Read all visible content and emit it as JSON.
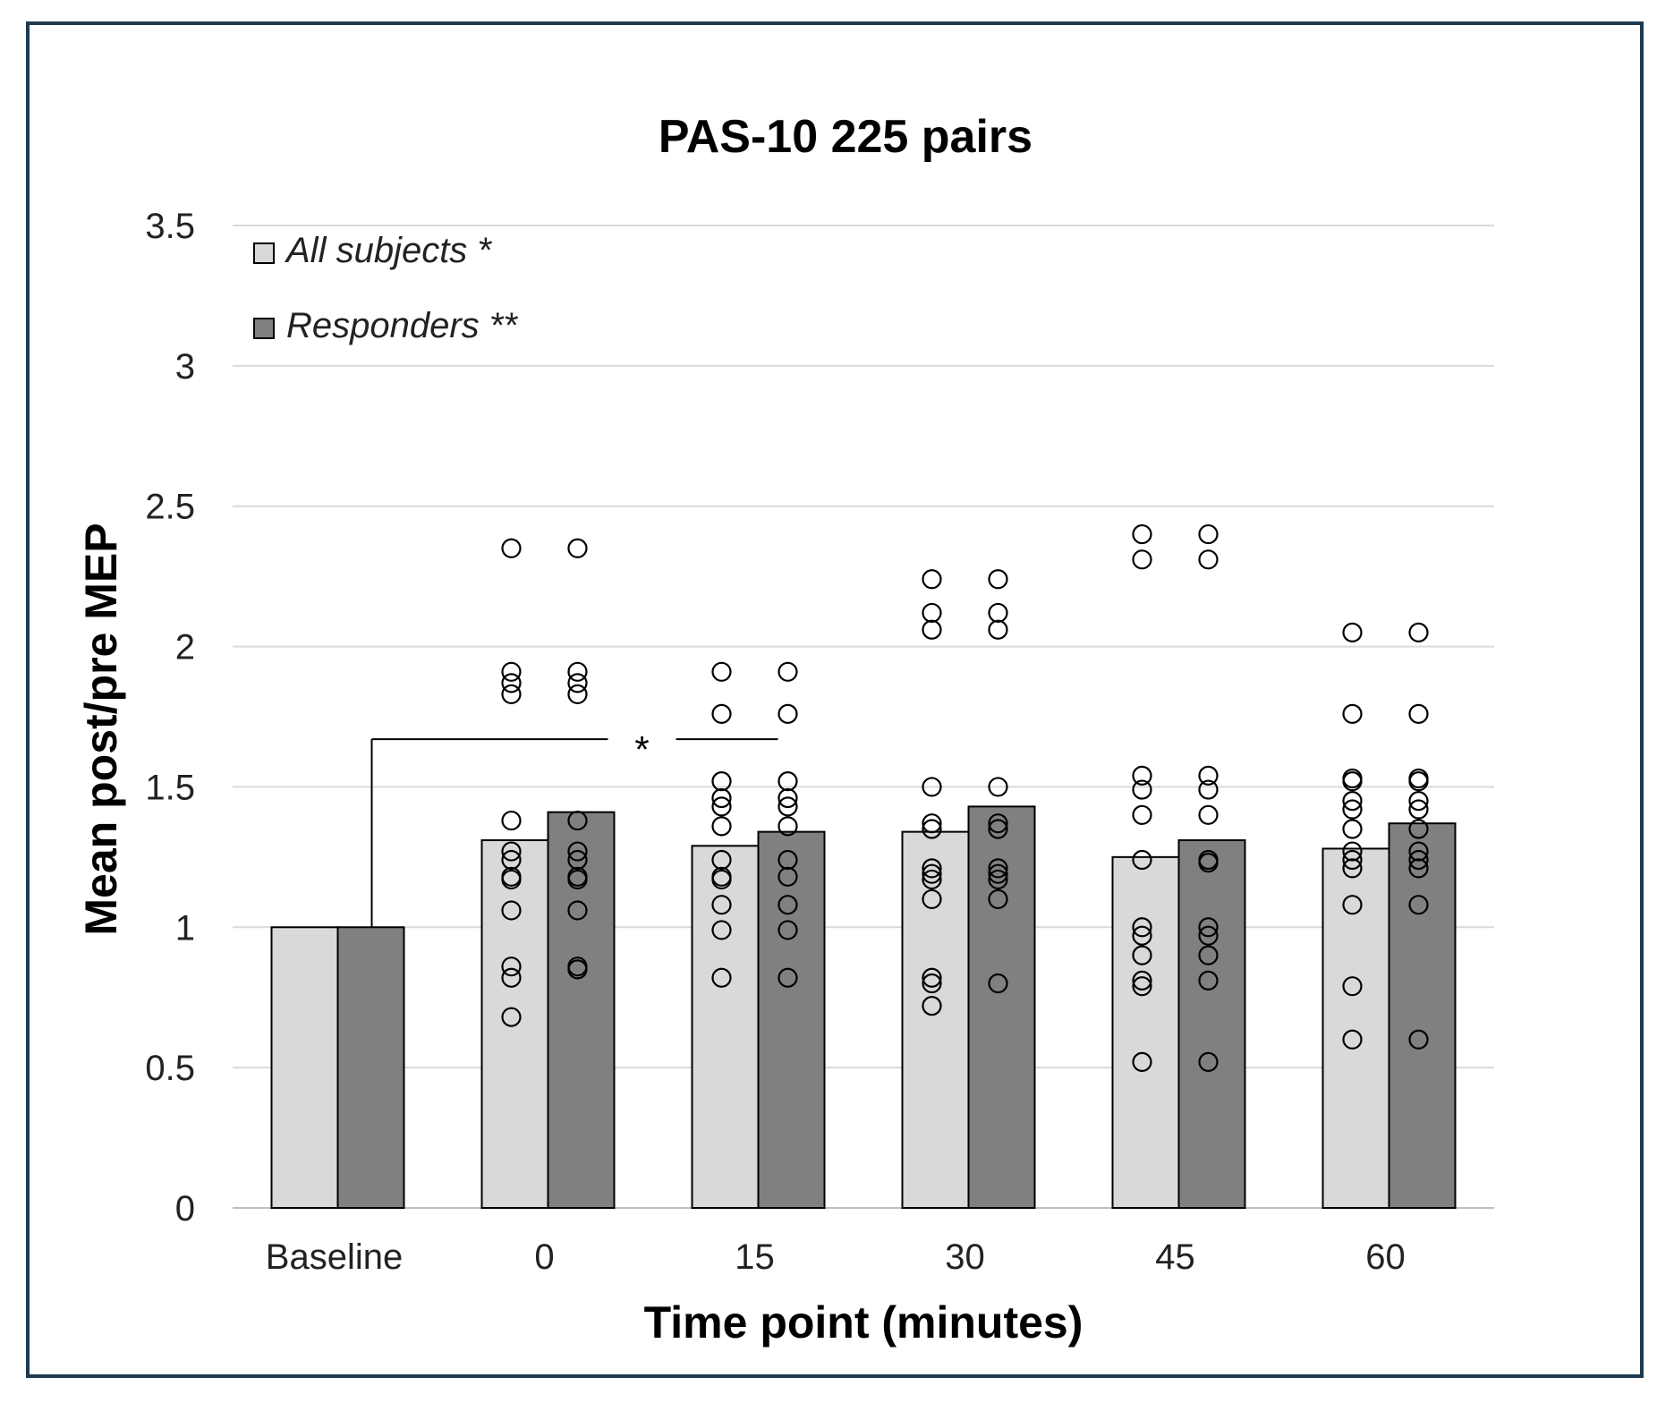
{
  "chart_data": {
    "type": "bar",
    "title": "PAS-10 225 pairs",
    "xlabel": "Time point  (minutes)",
    "ylabel": "Mean post/pre MEP",
    "ylim": [
      0,
      3.5
    ],
    "yticks": [
      "0",
      "0.5",
      "1",
      "1.5",
      "2",
      "2.5",
      "3",
      "3.5"
    ],
    "grid": true,
    "legend_position": "top-left",
    "categories": [
      "Baseline",
      "0",
      "15",
      "30",
      "45",
      "60"
    ],
    "series": [
      {
        "name": "All subjects *",
        "color": "#d9d9d9",
        "values": [
          1.0,
          1.31,
          1.29,
          1.34,
          1.25,
          1.28
        ],
        "points": [
          [],
          [
            2.35,
            1.91,
            1.87,
            1.83,
            1.38,
            1.27,
            1.24,
            1.18,
            1.17,
            1.06,
            0.86,
            0.82,
            0.68
          ],
          [
            1.91,
            1.76,
            1.52,
            1.46,
            1.43,
            1.36,
            1.24,
            1.18,
            1.17,
            1.08,
            0.99,
            0.82
          ],
          [
            2.24,
            2.12,
            2.06,
            1.5,
            1.37,
            1.35,
            1.21,
            1.19,
            1.17,
            1.1,
            0.82,
            0.8,
            0.72
          ],
          [
            2.4,
            2.31,
            1.54,
            1.49,
            1.4,
            1.24,
            1.0,
            0.97,
            0.9,
            0.81,
            0.79,
            0.52
          ],
          [
            2.05,
            1.76,
            1.53,
            1.52,
            1.45,
            1.42,
            1.35,
            1.27,
            1.24,
            1.21,
            1.08,
            0.79,
            0.6
          ]
        ]
      },
      {
        "name": "Responders **",
        "color": "#808080",
        "values": [
          1.0,
          1.41,
          1.34,
          1.43,
          1.31,
          1.37
        ],
        "points": [
          [],
          [
            2.35,
            1.91,
            1.87,
            1.83,
            1.38,
            1.27,
            1.24,
            1.18,
            1.17,
            1.06,
            0.86,
            0.85
          ],
          [
            1.91,
            1.76,
            1.52,
            1.46,
            1.43,
            1.36,
            1.24,
            1.18,
            1.08,
            0.99,
            0.82
          ],
          [
            2.24,
            2.12,
            2.06,
            1.5,
            1.37,
            1.35,
            1.21,
            1.19,
            1.17,
            1.1,
            0.8
          ],
          [
            2.4,
            2.31,
            1.54,
            1.49,
            1.4,
            1.24,
            1.23,
            1.0,
            0.97,
            0.9,
            0.81,
            0.52
          ],
          [
            2.05,
            1.76,
            1.53,
            1.52,
            1.45,
            1.42,
            1.35,
            1.27,
            1.24,
            1.21,
            1.08,
            0.6
          ]
        ]
      }
    ],
    "annotations": [
      {
        "text": "*",
        "from_category": "Baseline",
        "to_category": "15",
        "bracket_y": 1.67
      }
    ]
  }
}
